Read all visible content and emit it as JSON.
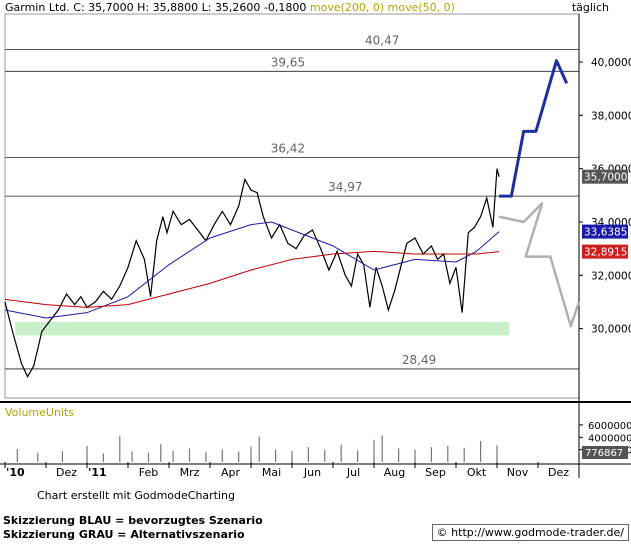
{
  "header": {
    "symbol": "Garmin Ltd.",
    "ohlc": "C: 35,7000  H: 35,8800  L: 35,2600  -0,1800",
    "ma200": "move(200, 0)",
    "ma50": "move(50, 0)",
    "interval": "täglich"
  },
  "panel": {
    "volume_label": "VolumeUnits"
  },
  "footer": {
    "credit": "Chart erstellt mit GodmodeCharting",
    "legend_blue": "Skizzierung BLAU = bevorzugtes Szenario",
    "legend_grey": "Skizzierung GRAU = Alternativszenario",
    "url": "© http://www.godmode-trader.de/"
  },
  "colors": {
    "price_line": "#000000",
    "ma50": "#1a1aa8",
    "ma200": "#c00000",
    "blue_scenario": "#1c2fa0",
    "grey_scenario": "#b0b0b0",
    "support_zone": "#c8f0c8",
    "last_price_label": "#555555",
    "ma50_label": "#1a1aa8",
    "ma200_label": "#cc2020"
  },
  "chart_data": {
    "type": "line",
    "price_axis": {
      "ticks": [
        "30,0000",
        "32,0000",
        "34,0000",
        "36,0000",
        "38,0000",
        "40,0000"
      ],
      "tick_values": [
        30,
        32,
        34,
        36,
        38,
        40
      ],
      "ylim": [
        27.4,
        41.8
      ]
    },
    "volume_axis": {
      "ticks": [
        "2000000",
        "4000000",
        "6000000"
      ],
      "tick_values": [
        2000000,
        4000000,
        6000000
      ],
      "ylim": [
        0,
        6800000
      ],
      "last_label": "776867"
    },
    "x_axis": {
      "labels": [
        "'10",
        "Dez",
        "'11",
        "Feb",
        "Mrz",
        "Apr",
        "Mai",
        "Jun",
        "Jul",
        "Aug",
        "Sep",
        "Okt",
        "Nov",
        "Dez"
      ],
      "label_months": [
        0,
        1,
        2,
        3,
        4,
        5,
        6,
        7,
        8,
        9,
        10,
        11,
        12,
        13
      ],
      "xlim_months": [
        0.0,
        14.0
      ]
    },
    "levels": [
      {
        "label": "40,47",
        "value": 40.47
      },
      {
        "label": "39,65",
        "value": 39.65
      },
      {
        "label": "36,42",
        "value": 36.42
      },
      {
        "label": "34,97",
        "value": 34.97
      },
      {
        "label": "28,49",
        "value": 28.49
      }
    ],
    "support_zone": [
      29.9,
      30.1
    ],
    "price_labels": [
      {
        "text": "35,7000",
        "value": 35.7,
        "kind": "last"
      },
      {
        "text": "33,6385",
        "value": 33.64,
        "kind": "ma50"
      },
      {
        "text": "32,8915",
        "value": 32.89,
        "kind": "ma200"
      }
    ],
    "series": [
      {
        "name": "Garmin Ltd.",
        "x": [
          0.0,
          0.2,
          0.4,
          0.55,
          0.7,
          0.9,
          1.1,
          1.3,
          1.5,
          1.7,
          1.85,
          2.0,
          2.2,
          2.4,
          2.6,
          2.8,
          3.0,
          3.2,
          3.4,
          3.55,
          3.7,
          3.85,
          3.95,
          4.1,
          4.3,
          4.5,
          4.7,
          4.9,
          5.1,
          5.3,
          5.5,
          5.7,
          5.85,
          6.0,
          6.15,
          6.3,
          6.5,
          6.7,
          6.9,
          7.1,
          7.3,
          7.5,
          7.7,
          7.9,
          8.1,
          8.3,
          8.45,
          8.6,
          8.75,
          8.9,
          9.05,
          9.2,
          9.35,
          9.5,
          9.65,
          9.8,
          10.0,
          10.2,
          10.4,
          10.55,
          10.7,
          10.85,
          11.0,
          11.15,
          11.3,
          11.45,
          11.6,
          11.75,
          11.9,
          12.0,
          12.05
        ],
        "values": [
          31.0,
          29.8,
          28.7,
          28.2,
          28.6,
          29.9,
          30.3,
          30.7,
          31.3,
          30.9,
          31.2,
          30.8,
          31.0,
          31.4,
          31.1,
          31.6,
          32.3,
          33.3,
          32.6,
          31.2,
          33.3,
          34.2,
          33.6,
          34.4,
          33.9,
          34.1,
          33.7,
          33.3,
          33.9,
          34.4,
          33.9,
          34.6,
          35.6,
          35.2,
          35.1,
          34.2,
          33.4,
          33.9,
          33.2,
          33.0,
          33.5,
          33.7,
          33.0,
          32.2,
          32.9,
          32.0,
          31.6,
          32.8,
          32.4,
          30.8,
          32.3,
          31.6,
          30.7,
          31.4,
          32.3,
          33.2,
          33.4,
          32.8,
          33.1,
          32.6,
          32.8,
          31.7,
          32.3,
          30.6,
          33.6,
          33.8,
          34.2,
          34.9,
          33.8,
          36.0,
          35.7
        ]
      },
      {
        "name": "move(50, 0)",
        "x": [
          0.0,
          1.0,
          2.0,
          3.0,
          4.0,
          5.0,
          6.0,
          6.5,
          7.0,
          8.0,
          9.0,
          10.0,
          11.0,
          11.5,
          12.05
        ],
        "values": [
          30.7,
          30.4,
          30.6,
          31.2,
          32.4,
          33.4,
          33.9,
          34.0,
          33.7,
          33.1,
          32.2,
          32.6,
          32.5,
          32.9,
          33.64
        ]
      },
      {
        "name": "move(200, 0)",
        "x": [
          0.0,
          1.0,
          2.0,
          3.0,
          4.0,
          5.0,
          6.0,
          7.0,
          8.0,
          9.0,
          10.0,
          11.0,
          11.5,
          12.05
        ],
        "values": [
          31.1,
          30.9,
          30.8,
          30.9,
          31.3,
          31.7,
          32.2,
          32.6,
          32.8,
          32.9,
          32.8,
          32.8,
          32.8,
          32.89
        ]
      }
    ],
    "scenarios": [
      {
        "name": "blau",
        "x": [
          12.05,
          12.35,
          12.65,
          12.95,
          13.45,
          13.7
        ],
        "values": [
          34.97,
          34.97,
          37.4,
          37.4,
          40.05,
          39.2
        ]
      },
      {
        "name": "grau",
        "x": [
          12.05,
          12.65,
          13.1,
          12.7,
          13.3,
          13.8,
          14.0
        ],
        "values": [
          34.2,
          34.0,
          34.7,
          32.7,
          32.7,
          30.1,
          31.0
        ]
      }
    ],
    "volume": {
      "x": [
        0.3,
        0.8,
        1.4,
        2.0,
        2.4,
        2.8,
        3.1,
        3.5,
        3.8,
        4.1,
        4.5,
        4.9,
        5.3,
        5.7,
        6.0,
        6.2,
        6.6,
        7.0,
        7.4,
        7.8,
        8.2,
        8.6,
        9.0,
        9.2,
        9.6,
        10.0,
        10.4,
        10.8,
        11.2,
        11.6,
        12.0
      ],
      "values": [
        2100000,
        1500000,
        1800000,
        2600000,
        1400000,
        4200000,
        1700000,
        1500000,
        2900000,
        1800000,
        2200000,
        1600000,
        2000000,
        1700000,
        2500000,
        4100000,
        2000000,
        1800000,
        2400000,
        2000000,
        2800000,
        1900000,
        3600000,
        4300000,
        2200000,
        2000000,
        2400000,
        2600000,
        2300000,
        3400000,
        2700000
      ]
    }
  }
}
